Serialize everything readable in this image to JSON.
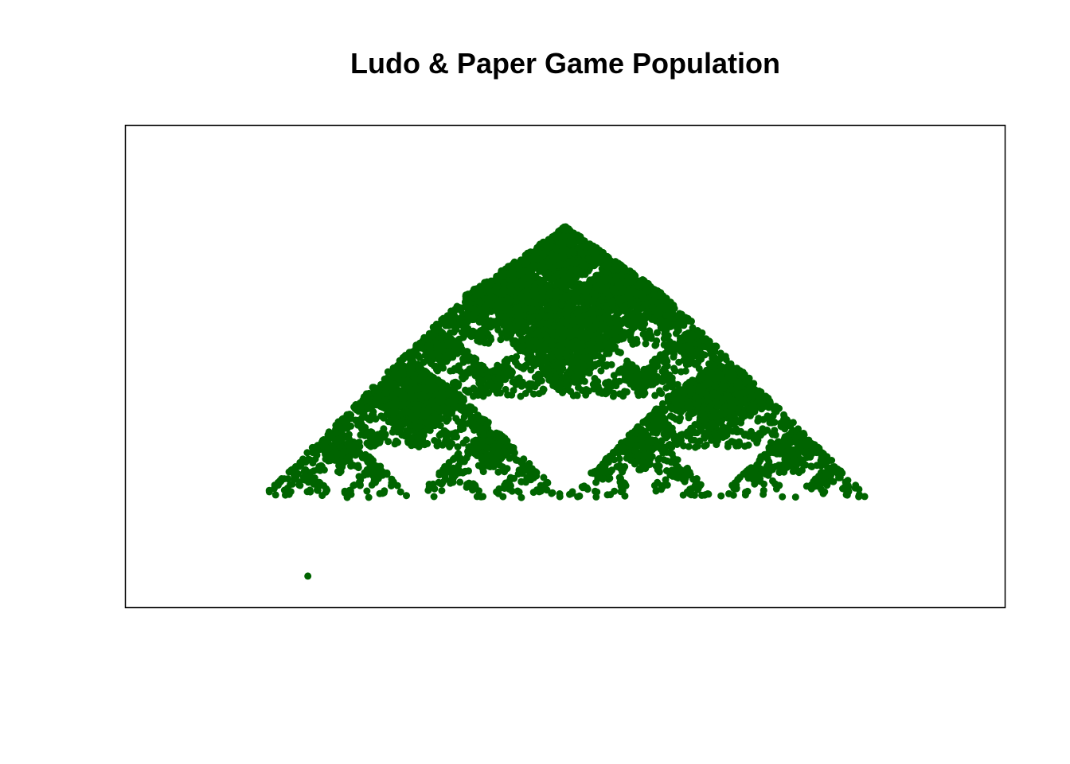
{
  "chart_data": {
    "type": "scatter",
    "title": "Ludo & Paper Game Population",
    "xlabel": "",
    "ylabel": "",
    "axes_shown": false,
    "grid": false,
    "legend": "none",
    "point_color": "#006400",
    "border_color": "#000000",
    "xlim": [
      -2.6,
      2.6
    ],
    "ylim": [
      -0.2,
      2.9
    ],
    "pattern": "fractal-fern (iterated function system, mirrored fronds)",
    "fractal_maps": [
      {
        "a": 0.5,
        "b": 0.0,
        "c": 0.0,
        "d": 0.5,
        "e": -0.9,
        "f": 0.25
      },
      {
        "a": 0.5,
        "b": 0.0,
        "c": 0.0,
        "d": 0.5,
        "e": 0.9,
        "f": 0.25
      },
      {
        "a": 0.5,
        "b": 0.0,
        "c": 0.0,
        "d": 0.5,
        "e": -0.3,
        "f": 0.9
      },
      {
        "a": 0.5,
        "b": 0.0,
        "c": 0.0,
        "d": 0.5,
        "e": 0.3,
        "f": 0.9
      },
      {
        "a": 0.4,
        "b": 0.0,
        "c": 0.0,
        "d": 0.4,
        "e": 0.0,
        "f": 1.35
      }
    ],
    "iterations": 9000,
    "series": [
      {
        "points": [
          {
            "x": -1.52,
            "y": 0.0
          }
        ]
      }
    ]
  }
}
